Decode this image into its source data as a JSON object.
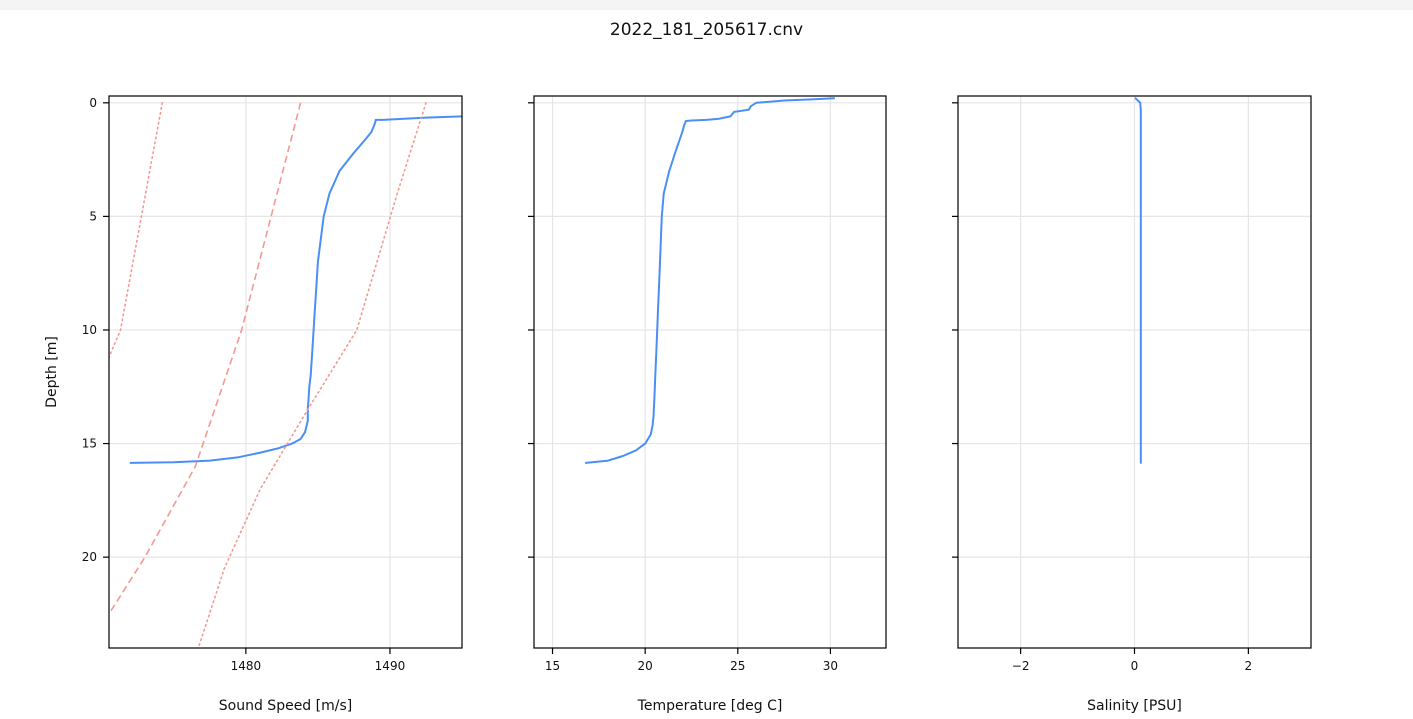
{
  "figure_title": "2022_181_205617.cnv",
  "colors": {
    "profile": "#4a8ff5",
    "bound": "#f29a92",
    "grid": "#e6e6e6"
  },
  "chart_data": [
    {
      "type": "line",
      "xlabel": "Sound Speed [m/s]",
      "ylabel": "Depth [m]",
      "xlim": [
        1470.5,
        1495
      ],
      "ylim": [
        24,
        -0.3
      ],
      "xticks": [
        1480,
        1490
      ],
      "yticks": [
        0,
        5,
        10,
        15,
        20
      ],
      "grid": true,
      "series": [
        {
          "style": "solid",
          "x": [
            1495,
            1492.5,
            1491,
            1489.5,
            1489.0,
            1489.0,
            1488.9,
            1488.7,
            1488.3,
            1487.5,
            1486.5,
            1485.8,
            1485.4,
            1485.2,
            1485.0,
            1484.9,
            1484.8,
            1484.7,
            1484.6,
            1484.5,
            1484.4,
            1484.35,
            1484.3,
            1484.3,
            1484.1,
            1483.8,
            1483.2,
            1482.3,
            1481.0,
            1479.5,
            1477.5,
            1475.0,
            1472.0
          ],
          "y": [
            0.6,
            0.65,
            0.7,
            0.75,
            0.75,
            0.8,
            1.0,
            1.3,
            1.6,
            2.2,
            3.0,
            4.0,
            5.0,
            6.0,
            7.0,
            8.0,
            9.0,
            10.0,
            11.0,
            12.0,
            12.5,
            13.0,
            13.5,
            14.0,
            14.5,
            14.8,
            15.0,
            15.2,
            15.4,
            15.6,
            15.75,
            15.82,
            15.85
          ]
        },
        {
          "style": "dashed",
          "x": [
            1483.8,
            1479.7,
            1476.5,
            1473.0,
            1470.5
          ],
          "y": [
            0,
            10,
            16.0,
            20.0,
            22.5
          ]
        },
        {
          "style": "dotted",
          "x": [
            1474.2,
            1471.3,
            1470.5
          ],
          "y": [
            0,
            10,
            11.2
          ]
        },
        {
          "style": "dotted",
          "x": [
            1492.5,
            1490.5,
            1487.7,
            1484.3,
            1481.0,
            1478.5,
            1476.7
          ],
          "y": [
            0,
            4.0,
            10.0,
            13.5,
            17.0,
            20.5,
            24.0
          ]
        }
      ]
    },
    {
      "type": "line",
      "xlabel": "Temperature [deg C]",
      "xlim": [
        14,
        33
      ],
      "ylim": [
        24,
        -0.3
      ],
      "xticks": [
        15,
        20,
        25,
        30
      ],
      "yticks": [
        0,
        5,
        10,
        15,
        20
      ],
      "grid": true,
      "series": [
        {
          "style": "solid",
          "x": [
            30.2,
            29.0,
            27.5,
            26.0,
            25.7,
            25.6,
            25.2,
            24.8,
            24.6,
            24.0,
            23.3,
            22.5,
            22.2,
            22.1,
            22.0,
            21.7,
            21.3,
            21.0,
            20.9,
            20.85,
            20.8,
            20.75,
            20.7,
            20.65,
            20.6,
            20.55,
            20.5,
            20.45,
            20.4,
            20.3,
            20.0,
            19.5,
            18.8,
            18.0,
            16.8
          ],
          "y": [
            -0.2,
            -0.15,
            -0.1,
            0.0,
            0.15,
            0.3,
            0.35,
            0.4,
            0.6,
            0.7,
            0.75,
            0.78,
            0.8,
            1.0,
            1.3,
            2.0,
            3.0,
            4.0,
            5.0,
            6.0,
            7.0,
            8.0,
            9.0,
            10.0,
            11.0,
            12.0,
            13.0,
            13.8,
            14.2,
            14.6,
            15.0,
            15.3,
            15.55,
            15.75,
            15.85
          ]
        }
      ]
    },
    {
      "type": "line",
      "xlabel": "Salinity [PSU]",
      "xlim": [
        -3.1,
        3.1
      ],
      "ylim": [
        24,
        -0.3
      ],
      "xticks": [
        -2,
        0,
        2
      ],
      "xticklabels": [
        "−2",
        "0",
        "2"
      ],
      "yticks": [
        0,
        5,
        10,
        15,
        20
      ],
      "grid": true,
      "series": [
        {
          "style": "solid",
          "x": [
            0.02,
            0.06,
            0.1,
            0.11,
            0.11,
            0.11
          ],
          "y": [
            -0.2,
            -0.1,
            0.0,
            0.3,
            5.0,
            15.85
          ]
        }
      ]
    }
  ]
}
